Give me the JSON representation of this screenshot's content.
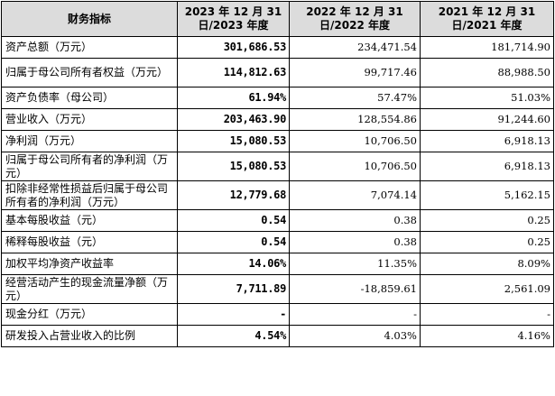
{
  "headers": [
    "财务指标",
    "2023 年 12 月 31 日/2023 年度",
    "2022 年 12 月 31 日/2022 年度",
    "2021 年 12 月 31 日/2021 年度"
  ],
  "rows": [
    {
      "label": "资产总额（万元）",
      "values": [
        "301,686.53",
        "234,471.54",
        "181,714.90"
      ]
    },
    {
      "label": "归属于母公司所有者权益（万元）",
      "values": [
        "114,812.63",
        "99,717.46",
        "88,988.50"
      ]
    },
    {
      "label": "资产负债率（母公司）",
      "values": [
        "61.94%",
        "57.47%",
        "51.03%"
      ]
    },
    {
      "label": "营业收入（万元）",
      "values": [
        "203,463.90",
        "128,554.86",
        "91,244.60"
      ]
    },
    {
      "label": "净利润（万元）",
      "values": [
        "15,080.53",
        "10,706.50",
        "6,918.13"
      ]
    },
    {
      "label": "归属于母公司所有者的净利润（万元）",
      "values": [
        "15,080.53",
        "10,706.50",
        "6,918.13"
      ]
    },
    {
      "label": "扣除非经常性损益后归属于母公司所有者的净利润（万元）",
      "values": [
        "12,779.68",
        "7,074.14",
        "5,162.15"
      ]
    },
    {
      "label": "基本每股收益（元）",
      "values": [
        "0.54",
        "0.38",
        "0.25"
      ]
    },
    {
      "label": "稀释每股收益（元）",
      "values": [
        "0.54",
        "0.38",
        "0.25"
      ]
    },
    {
      "label": "加权平均净资产收益率",
      "values": [
        "14.06%",
        "11.35%",
        "8.09%"
      ]
    },
    {
      "label": "经营活动产生的现金流量净额（万元）",
      "values": [
        "7,711.89",
        "-18,859.61",
        "2,561.09"
      ]
    },
    {
      "label": "现金分红（万元）",
      "values": [
        "-",
        "-",
        "-"
      ]
    },
    {
      "label": "研发投入占营业收入的比例",
      "values": [
        "4.54%",
        "4.03%",
        "4.16%"
      ]
    }
  ]
}
